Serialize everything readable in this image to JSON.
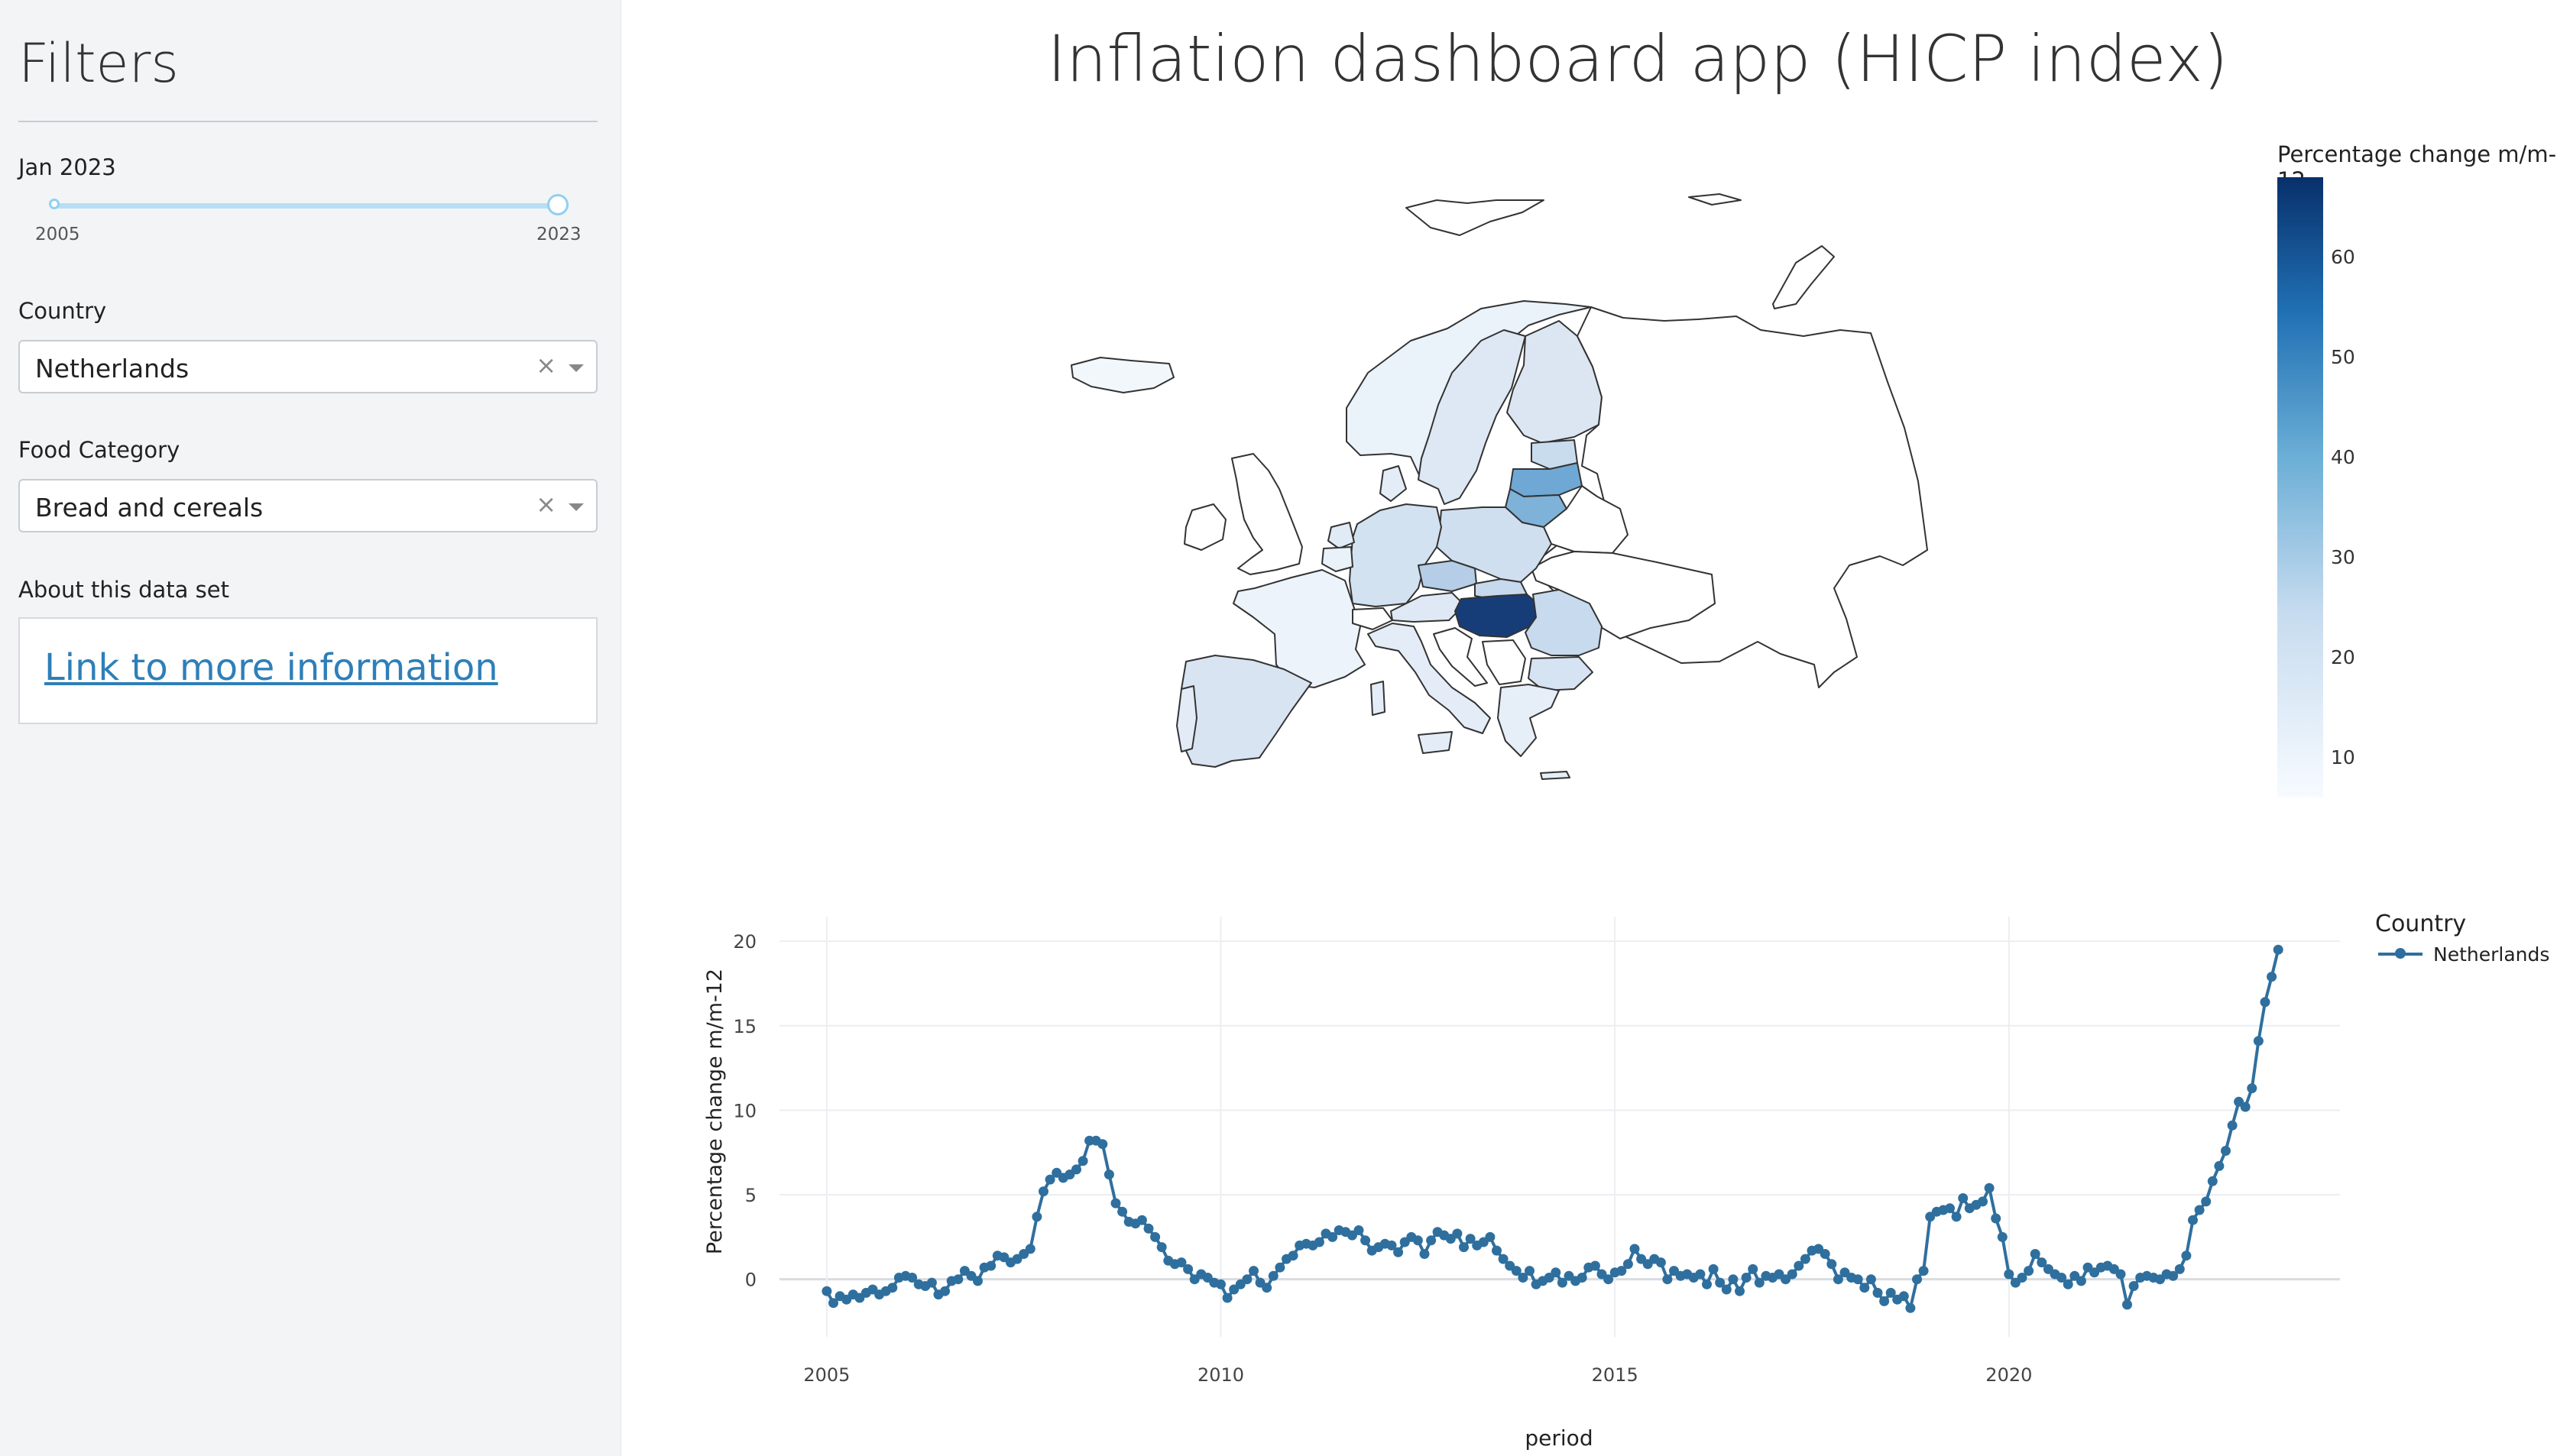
{
  "sidebar": {
    "title": "Filters",
    "date_label": "Jan 2023",
    "slider": {
      "min_label": "2005",
      "max_label": "2023",
      "selected_low": "2005",
      "selected_high": "2023"
    },
    "country_label": "Country",
    "country_value": "Netherlands",
    "food_label": "Food Category",
    "food_value": "Bread and cereals",
    "about_label": "About this data set",
    "link_text": "Link to more information"
  },
  "main": {
    "title": "Inflation dashboard app (HICP index)"
  },
  "map": {
    "colorbar_title": "Percentage change m/m-12",
    "colorbar_ticks": [
      "60",
      "50",
      "40",
      "30",
      "20",
      "10"
    ],
    "colorbar_min": 6,
    "colorbar_max": 68
  },
  "legend": {
    "title": "Country",
    "item": "Netherlands"
  },
  "colors": {
    "accent": "#2e7fb8",
    "series": "#2f6f9e",
    "slider": "#8fd0f2"
  },
  "chart_data": {
    "type": "line",
    "title": "",
    "xlabel": "period",
    "ylabel": "Percentage change m/m-12",
    "xlim": [
      2004.4,
      2024.2
    ],
    "ylim": [
      -2.5,
      21
    ],
    "x_ticks": [
      "2005",
      "2010",
      "2015",
      "2020"
    ],
    "y_ticks": [
      "0",
      "5",
      "10",
      "15",
      "20"
    ],
    "grid": true,
    "legend_position": "right",
    "series": [
      {
        "name": "Netherlands",
        "x_start": "2005-01",
        "frequency": "monthly",
        "values": [
          -0.7,
          -1.4,
          -1.0,
          -1.2,
          -0.9,
          -1.1,
          -0.8,
          -0.6,
          -0.9,
          -0.7,
          -0.5,
          0.1,
          0.2,
          0.1,
          -0.3,
          -0.4,
          -0.2,
          -0.9,
          -0.7,
          -0.1,
          0.0,
          0.5,
          0.2,
          -0.1,
          0.7,
          0.8,
          1.4,
          1.3,
          1.0,
          1.2,
          1.5,
          1.8,
          3.7,
          5.2,
          5.9,
          6.3,
          6.0,
          6.2,
          6.5,
          7.0,
          8.2,
          8.2,
          8.0,
          6.2,
          4.5,
          4.0,
          3.4,
          3.3,
          3.5,
          3.0,
          2.5,
          1.9,
          1.1,
          0.9,
          1.0,
          0.6,
          0.0,
          0.3,
          0.1,
          -0.2,
          -0.3,
          -1.1,
          -0.6,
          -0.3,
          0.0,
          0.5,
          -0.2,
          -0.5,
          0.2,
          0.7,
          1.2,
          1.4,
          2.0,
          2.1,
          2.0,
          2.2,
          2.7,
          2.5,
          2.9,
          2.8,
          2.6,
          2.9,
          2.3,
          1.7,
          1.9,
          2.1,
          2.0,
          1.6,
          2.2,
          2.5,
          2.3,
          1.5,
          2.3,
          2.8,
          2.6,
          2.4,
          2.7,
          1.9,
          2.4,
          2.0,
          2.2,
          2.5,
          1.7,
          1.2,
          0.8,
          0.5,
          0.1,
          0.5,
          -0.3,
          -0.1,
          0.1,
          0.4,
          -0.2,
          0.2,
          -0.1,
          0.1,
          0.7,
          0.8,
          0.3,
          0.0,
          0.4,
          0.5,
          0.9,
          1.8,
          1.2,
          0.9,
          1.2,
          1.0,
          0.0,
          0.5,
          0.2,
          0.3,
          0.1,
          0.3,
          -0.3,
          0.6,
          -0.2,
          -0.6,
          0.0,
          -0.7,
          0.1,
          0.6,
          -0.2,
          0.2,
          0.1,
          0.3,
          0.0,
          0.3,
          0.8,
          1.2,
          1.7,
          1.8,
          1.5,
          0.9,
          0.0,
          0.4,
          0.1,
          0.0,
          -0.5,
          0.0,
          -0.8,
          -1.3,
          -0.8,
          -1.2,
          -1.0,
          -1.7,
          0.0,
          0.5,
          3.7,
          4.0,
          4.1,
          4.2,
          3.7,
          4.8,
          4.2,
          4.4,
          4.6,
          5.4,
          3.6,
          2.5,
          0.3,
          -0.2,
          0.1,
          0.5,
          1.5,
          1.0,
          0.6,
          0.3,
          0.1,
          -0.3,
          0.2,
          -0.1,
          0.7,
          0.4,
          0.7,
          0.8,
          0.6,
          0.3,
          -1.5,
          -0.4,
          0.1,
          0.2,
          0.1,
          0.0,
          0.3,
          0.2,
          0.6,
          1.4,
          3.5,
          4.1,
          4.6,
          5.8,
          6.7,
          7.6,
          9.1,
          10.5,
          10.2,
          11.3,
          14.1,
          16.4,
          17.9,
          19.5
        ]
      }
    ]
  }
}
